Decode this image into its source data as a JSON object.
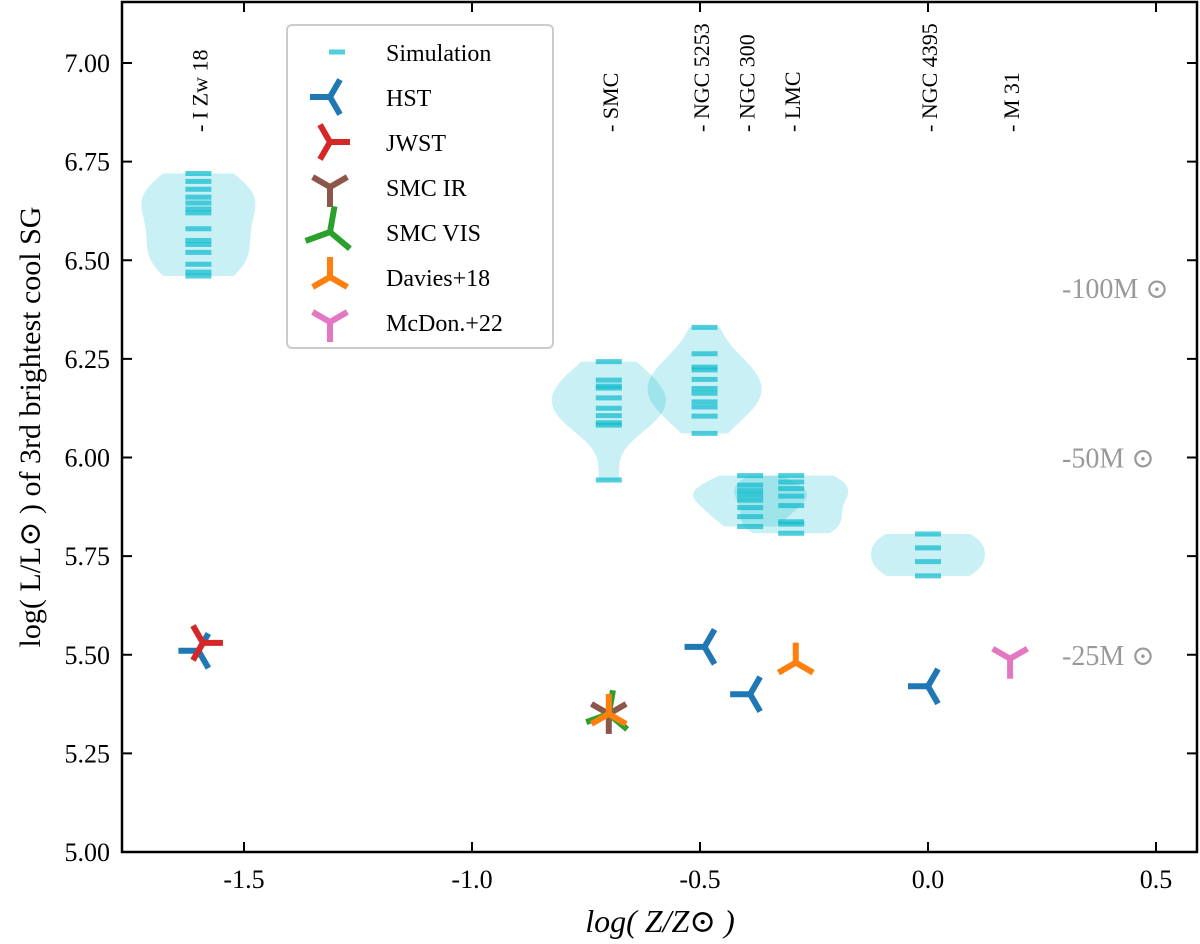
{
  "chart_data": {
    "type": "scatter",
    "xlabel": "log( Z/Z⊙ )",
    "ylabel": "log( L/L⊙ ) of 3rd brightest cool SG",
    "xlim": [
      -1.77,
      0.59
    ],
    "ylim": [
      5.0,
      7.16
    ],
    "xticks": [
      "-1.5",
      "-1.0",
      "-0.5",
      "0.0",
      "0.5"
    ],
    "xtick_values": [
      -1.5,
      -1.0,
      -0.5,
      0.0,
      0.5
    ],
    "yticks": [
      "5.00",
      "5.25",
      "5.50",
      "5.75",
      "6.00",
      "6.25",
      "6.50",
      "6.75",
      "7.00"
    ],
    "ytick_values": [
      5.0,
      5.25,
      5.5,
      5.75,
      6.0,
      6.25,
      6.5,
      6.75,
      7.0
    ],
    "grid": false,
    "legend_placement": "upper-left",
    "galaxy_labels": [
      {
        "label": "- I Zw 18",
        "x": -1.6
      },
      {
        "label": "- SMC",
        "x": -0.7
      },
      {
        "label": "- NGC 5253",
        "x": -0.5
      },
      {
        "label": "- NGC 300",
        "x": -0.4
      },
      {
        "label": "- LMC",
        "x": -0.3
      },
      {
        "label": "- NGC 4395",
        "x": 0.0
      },
      {
        "label": "- M 31",
        "x": 0.18
      }
    ],
    "mass_labels": [
      {
        "label": "-100M ⊙",
        "y": 6.43
      },
      {
        "label": "-50M ⊙",
        "y": 6.0
      },
      {
        "label": "-25M ⊙",
        "y": 5.5
      }
    ],
    "simulation": {
      "name": "Simulation",
      "color": "#17becf",
      "violins": [
        {
          "x": -1.6,
          "values": [
            6.72,
            6.7,
            6.68,
            6.66,
            6.645,
            6.63,
            6.62,
            6.58,
            6.55,
            6.54,
            6.52,
            6.49,
            6.47,
            6.46
          ]
        },
        {
          "x": -0.7,
          "values": [
            6.243,
            6.196,
            6.181,
            6.176,
            6.151,
            6.125,
            6.106,
            6.088,
            6.082,
            5.943
          ]
        },
        {
          "x": -0.49,
          "values": [
            6.33,
            6.263,
            6.229,
            6.222,
            6.198,
            6.175,
            6.163,
            6.141,
            6.128,
            6.105,
            6.061
          ]
        },
        {
          "x": -0.39,
          "values": [
            5.954,
            5.93,
            5.916,
            5.905,
            5.892,
            5.873,
            5.85,
            5.825
          ]
        },
        {
          "x": -0.3,
          "values": [
            5.954,
            5.938,
            5.921,
            5.902,
            5.878,
            5.837,
            5.831,
            5.808
          ]
        },
        {
          "x": 0.0,
          "values": [
            5.806,
            5.771,
            5.736,
            5.7
          ]
        }
      ]
    },
    "series": [
      {
        "name": "HST",
        "color": "#1f77b4",
        "marker": "tri-left",
        "points": [
          [
            -1.6,
            5.51
          ],
          [
            -0.49,
            5.52
          ],
          [
            -0.39,
            5.4
          ],
          [
            0.0,
            5.42
          ]
        ]
      },
      {
        "name": "JWST",
        "color": "#d62728",
        "marker": "tri-right",
        "points": [
          [
            -1.59,
            5.53
          ]
        ]
      },
      {
        "name": "SMC IR",
        "color": "#8c564b",
        "marker": "tri-down",
        "points": [
          [
            -0.7,
            5.35
          ]
        ]
      },
      {
        "name": "SMC VIS",
        "color": "#2ca02c",
        "marker": "tri-left-rotated",
        "points": [
          [
            -0.7,
            5.35
          ]
        ]
      },
      {
        "name": "Davies+18",
        "color": "#ff7f0e",
        "marker": "tri-up",
        "points": [
          [
            -0.7,
            5.35
          ],
          [
            -0.29,
            5.48
          ]
        ]
      },
      {
        "name": "McDon.+22",
        "color": "#e377c2",
        "marker": "tri-down",
        "points": [
          [
            0.18,
            5.49
          ]
        ]
      }
    ]
  }
}
